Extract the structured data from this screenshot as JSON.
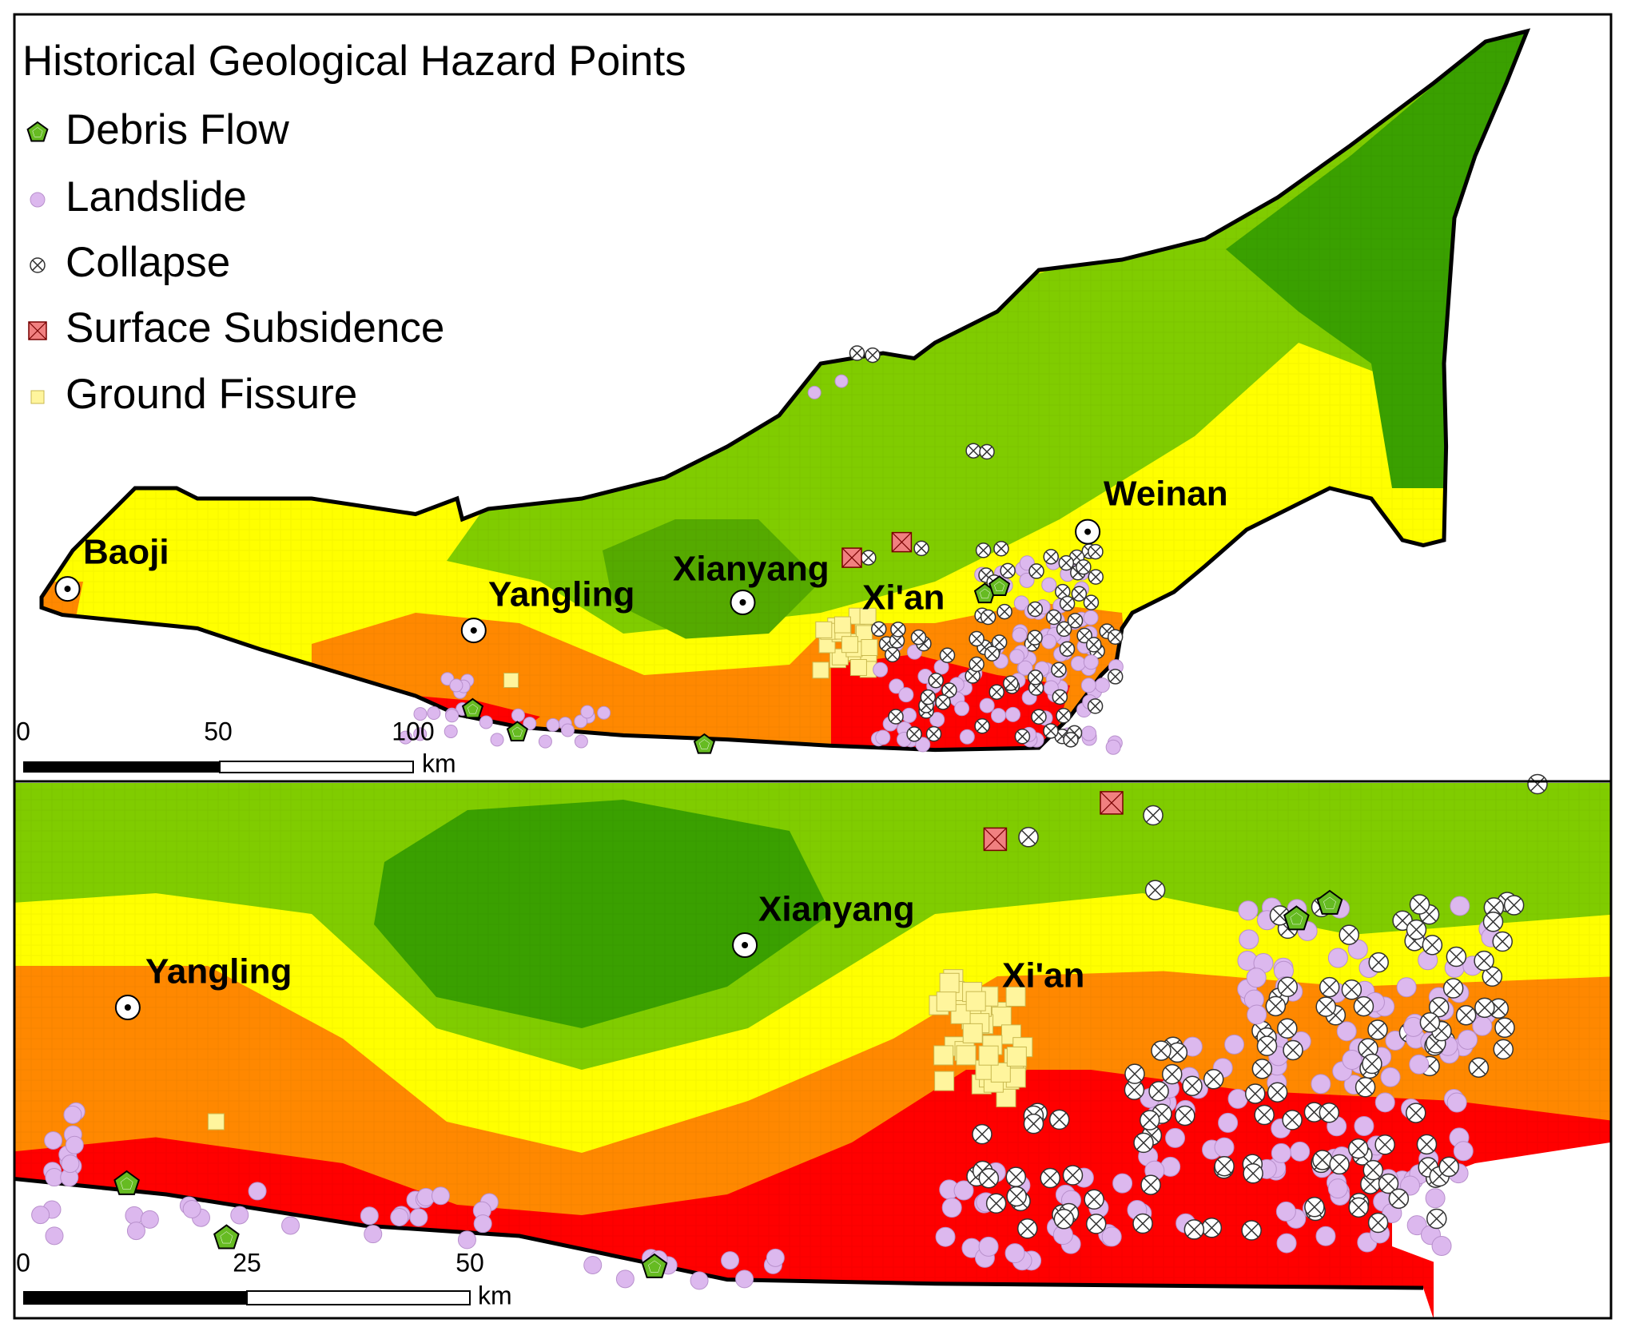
{
  "legend": {
    "title": "Historical Geological Hazard Points",
    "items": [
      "Debris Flow",
      "Landslide",
      "Collapse",
      "Surface Subsidence",
      "Ground Fissure"
    ]
  },
  "top_map": {
    "cities": [
      "Baoji",
      "Yangling",
      "Xianyang",
      "Xi'an",
      "Weinan"
    ],
    "scale": {
      "labels": [
        "0",
        "50",
        "100"
      ],
      "unit": "km"
    }
  },
  "bottom_map": {
    "cities": [
      "Xianyang",
      "Yangling",
      "Xi'an"
    ],
    "scale": {
      "labels": [
        "0",
        "25",
        "50"
      ],
      "unit": "km"
    }
  }
}
